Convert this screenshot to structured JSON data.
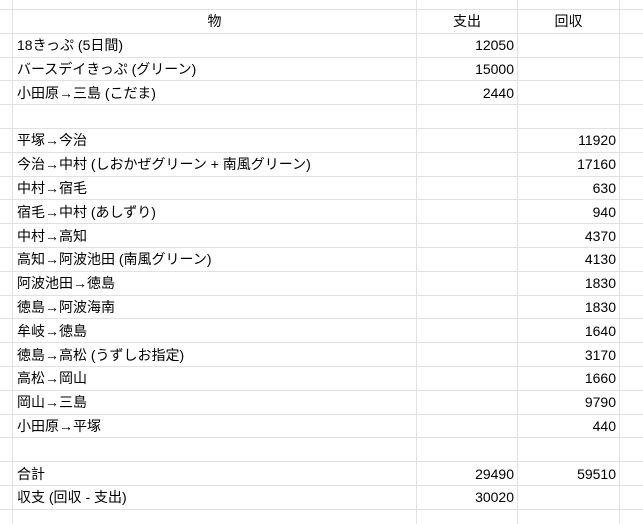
{
  "app": {
    "kind": "spreadsheet"
  },
  "colors": {
    "background": "#ffffff",
    "gridline": "#e1e1e1",
    "text": "#000000"
  },
  "table": {
    "columns": [
      {
        "key": "item",
        "label": "物"
      },
      {
        "key": "expense",
        "label": "支出"
      },
      {
        "key": "recovery",
        "label": "回収"
      }
    ],
    "rows": [
      {
        "item": "18きっぷ (5日間)",
        "expense": "12050",
        "recovery": ""
      },
      {
        "item": "バースデイきっぷ (グリーン)",
        "expense": "15000",
        "recovery": ""
      },
      {
        "item": "小田原→三島 (こだま)",
        "expense": "2440",
        "recovery": ""
      },
      {
        "item": "",
        "expense": "",
        "recovery": ""
      },
      {
        "item": "平塚→今治",
        "expense": "",
        "recovery": "11920"
      },
      {
        "item": "今治→中村 (しおかぜグリーン + 南風グリーン)",
        "expense": "",
        "recovery": "17160"
      },
      {
        "item": "中村→宿毛",
        "expense": "",
        "recovery": "630"
      },
      {
        "item": "宿毛→中村 (あしずり)",
        "expense": "",
        "recovery": "940"
      },
      {
        "item": "中村→高知",
        "expense": "",
        "recovery": "4370"
      },
      {
        "item": "高知→阿波池田 (南風グリーン)",
        "expense": "",
        "recovery": "4130"
      },
      {
        "item": "阿波池田→徳島",
        "expense": "",
        "recovery": "1830"
      },
      {
        "item": "徳島→阿波海南",
        "expense": "",
        "recovery": "1830"
      },
      {
        "item": "牟岐→徳島",
        "expense": "",
        "recovery": "1640"
      },
      {
        "item": "徳島→高松 (うずしお指定)",
        "expense": "",
        "recovery": "3170"
      },
      {
        "item": "高松→岡山",
        "expense": "",
        "recovery": "1660"
      },
      {
        "item": "岡山→三島",
        "expense": "",
        "recovery": "9790"
      },
      {
        "item": "小田原→平塚",
        "expense": "",
        "recovery": "440"
      },
      {
        "item": "",
        "expense": "",
        "recovery": ""
      },
      {
        "item": "合計",
        "expense": "29490",
        "recovery": "59510"
      },
      {
        "item": "収支 (回収 - 支出)",
        "expense": "30020",
        "recovery": ""
      }
    ]
  }
}
